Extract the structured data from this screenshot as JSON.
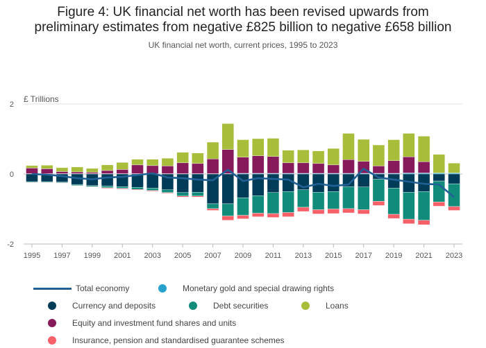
{
  "title_line1": "Figure 4: UK financial net worth has been revised upwards from",
  "title_line2": "preliminary estimates from negative £825 billion to negative £658 billion",
  "subtitle": "UK financial net worth, current prices, 1995 to 2023",
  "colors": {
    "total": "#206095",
    "gold": "#27a0cc",
    "currency": "#003c57",
    "debt": "#118c7b",
    "loans": "#a8bd3a",
    "equity": "#871a5b",
    "insurance": "#f66068"
  },
  "legend": [
    {
      "key": "total",
      "label": "Total economy"
    },
    {
      "key": "gold",
      "label": "Monetary gold and special drawing rights"
    },
    {
      "key": "currency",
      "label": "Currency and deposits"
    },
    {
      "key": "debt",
      "label": "Debt securities"
    },
    {
      "key": "loans",
      "label": "Loans"
    },
    {
      "key": "equity",
      "label": "Equity and investment fund shares and units"
    },
    {
      "key": "insurance",
      "label": "Insurance, pension and standardised guarantee schemes"
    }
  ],
  "chart_data": {
    "type": "bar",
    "stacked": true,
    "unit_label": "£ Trillions",
    "ylim": [
      -2,
      2
    ],
    "yticks": [
      2,
      0,
      -2
    ],
    "xtick_labels": [
      "1995",
      "1997",
      "1999",
      "2001",
      "2003",
      "2005",
      "2007",
      "2009",
      "2011",
      "2013",
      "2015",
      "2017",
      "2019",
      "2021",
      "2023"
    ],
    "categories": [
      "1995",
      "1996",
      "1997",
      "1998",
      "1999",
      "2000",
      "2001",
      "2002",
      "2003",
      "2004",
      "2005",
      "2006",
      "2007",
      "2008",
      "2009",
      "2010",
      "2011",
      "2012",
      "2013",
      "2014",
      "2015",
      "2016",
      "2017",
      "2018",
      "2019",
      "2020",
      "2021",
      "2022",
      "2023"
    ],
    "series": [
      {
        "key": "gold",
        "name": "Monetary gold and special drawing rights",
        "values": [
          0.01,
          0.01,
          0.01,
          0.01,
          0.01,
          0.01,
          0.01,
          0.01,
          0.01,
          0.01,
          0.01,
          0.01,
          0.01,
          0.01,
          0.02,
          0.02,
          0.02,
          0.02,
          0.02,
          0.02,
          0.02,
          0.02,
          0.02,
          0.02,
          0.02,
          0.03,
          0.03,
          0.03,
          0.03
        ]
      },
      {
        "key": "equity",
        "name": "Equity and investment fund shares and units",
        "values": [
          0.16,
          0.14,
          0.06,
          0.05,
          0.04,
          0.09,
          0.12,
          0.25,
          0.23,
          0.22,
          0.31,
          0.29,
          0.42,
          0.69,
          0.46,
          0.5,
          0.48,
          0.3,
          0.3,
          0.28,
          0.24,
          0.39,
          0.34,
          0.21,
          0.36,
          0.46,
          0.32,
          0.0,
          0.0
        ]
      },
      {
        "key": "loans",
        "name": "Loans",
        "values": [
          0.07,
          0.1,
          0.11,
          0.14,
          0.11,
          0.16,
          0.2,
          0.16,
          0.18,
          0.22,
          0.3,
          0.3,
          0.48,
          0.74,
          0.5,
          0.49,
          0.52,
          0.36,
          0.37,
          0.36,
          0.47,
          0.75,
          0.63,
          0.6,
          0.6,
          0.67,
          0.73,
          0.53,
          0.28
        ]
      },
      {
        "key": "currency",
        "name": "Currency and deposits",
        "values": [
          -0.22,
          -0.22,
          -0.23,
          -0.3,
          -0.33,
          -0.34,
          -0.36,
          -0.38,
          -0.4,
          -0.45,
          -0.53,
          -0.52,
          -0.85,
          -0.85,
          -0.68,
          -0.62,
          -0.53,
          -0.5,
          -0.45,
          -0.52,
          -0.5,
          -0.36,
          -0.37,
          -0.15,
          -0.4,
          -0.52,
          -0.5,
          -0.2,
          -0.28
        ]
      },
      {
        "key": "debt",
        "name": "Debt securities",
        "values": [
          -0.02,
          -0.02,
          -0.02,
          -0.03,
          -0.03,
          -0.05,
          -0.05,
          -0.06,
          -0.07,
          -0.08,
          -0.1,
          -0.11,
          -0.14,
          -0.35,
          -0.5,
          -0.5,
          -0.6,
          -0.6,
          -0.5,
          -0.5,
          -0.5,
          -0.63,
          -0.65,
          -0.63,
          -0.75,
          -0.77,
          -0.82,
          -0.6,
          -0.65
        ]
      },
      {
        "key": "insurance",
        "name": "Insurance, pension and standardised guarantee schemes",
        "values": [
          -0.01,
          -0.01,
          -0.01,
          -0.01,
          -0.01,
          -0.02,
          -0.02,
          -0.02,
          -0.02,
          -0.02,
          -0.03,
          -0.03,
          -0.05,
          -0.12,
          -0.1,
          -0.1,
          -0.11,
          -0.12,
          -0.12,
          -0.12,
          -0.13,
          -0.12,
          -0.12,
          -0.12,
          -0.12,
          -0.13,
          -0.13,
          -0.12,
          -0.11
        ]
      }
    ],
    "total": {
      "key": "total",
      "name": "Total economy",
      "values": [
        0.0,
        -0.02,
        -0.06,
        -0.12,
        -0.15,
        -0.1,
        -0.08,
        -0.03,
        0.02,
        -0.1,
        -0.12,
        -0.16,
        -0.18,
        0.12,
        -0.2,
        -0.12,
        -0.14,
        -0.16,
        -0.38,
        -0.28,
        -0.34,
        -0.3,
        0.15,
        -0.1,
        -0.16,
        -0.22,
        -0.28,
        -0.3,
        -0.66
      ]
    }
  }
}
